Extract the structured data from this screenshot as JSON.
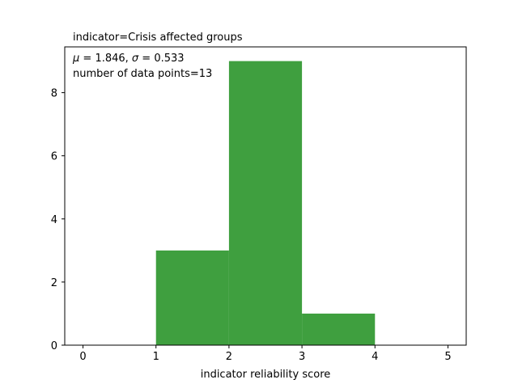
{
  "chart_data": {
    "type": "bar",
    "title": "indicator=Crisis affected groups",
    "xlabel": "indicator reliability score",
    "ylabel": "",
    "bins": [
      {
        "start": 0,
        "end": 1,
        "count": 0
      },
      {
        "start": 1,
        "end": 2,
        "count": 3
      },
      {
        "start": 2,
        "end": 3,
        "count": 9
      },
      {
        "start": 3,
        "end": 4,
        "count": 1
      },
      {
        "start": 4,
        "end": 5,
        "count": 0
      }
    ],
    "xlim": [
      -0.25,
      5.25
    ],
    "ylim": [
      0,
      9.45
    ],
    "xticks": [
      "0",
      "1",
      "2",
      "3",
      "4",
      "5"
    ],
    "yticks": [
      "0",
      "2",
      "4",
      "6",
      "8"
    ],
    "annotations": {
      "mu_symbol": "μ",
      "mu_value": " = 1.846,  ",
      "sigma_symbol": "σ",
      "sigma_value": " = 0.533",
      "count_line": "number of data points=13"
    },
    "grid": false,
    "bar_color": "#3f9f3f"
  }
}
